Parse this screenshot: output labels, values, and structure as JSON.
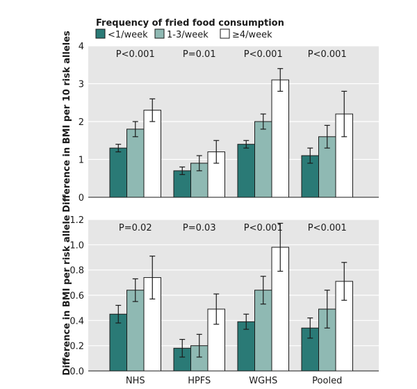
{
  "legend": {
    "title": "Frequency of fried food consumption",
    "items": [
      "<1/week",
      "1-3/week",
      "≥4/week"
    ]
  },
  "colors": {
    "low": "#2a7a76",
    "mid": "#8fb9b3",
    "high": "#ffffff",
    "panel": "#e6e6e6",
    "stroke": "#1a1a1a"
  },
  "chart_data": [
    {
      "type": "bar",
      "ylabel": "Difference in BMI per 10 risk alleles",
      "ylim": [
        0,
        4
      ],
      "yticks": [
        0,
        1,
        2,
        3,
        4
      ],
      "categories": [
        "NHS",
        "HPFS",
        "WGHS",
        "Pooled"
      ],
      "pvalues": [
        "P<0.001",
        "P=0.01",
        "P<0.001",
        "P<0.001"
      ],
      "series": [
        {
          "name": "<1/week",
          "values": [
            1.3,
            0.7,
            1.4,
            1.1
          ],
          "lower": [
            1.2,
            0.6,
            1.3,
            0.9
          ],
          "upper": [
            1.4,
            0.8,
            1.5,
            1.3
          ]
        },
        {
          "name": "1-3/week",
          "values": [
            1.8,
            0.9,
            2.0,
            1.6
          ],
          "lower": [
            1.6,
            0.7,
            1.8,
            1.3
          ],
          "upper": [
            2.0,
            1.1,
            2.2,
            1.9
          ]
        },
        {
          "name": "≥4/week",
          "values": [
            2.3,
            1.2,
            3.1,
            2.2
          ],
          "lower": [
            2.0,
            0.9,
            2.8,
            1.6
          ],
          "upper": [
            2.6,
            1.5,
            3.4,
            2.8
          ]
        }
      ]
    },
    {
      "type": "bar",
      "ylabel": "Difference in BMI per risk allele",
      "ylim": [
        0,
        1.2
      ],
      "yticks": [
        0,
        0.2,
        0.4,
        0.6,
        0.8,
        1.0,
        1.2
      ],
      "categories": [
        "NHS",
        "HPFS",
        "WGHS",
        "Pooled"
      ],
      "pvalues": [
        "P=0.02",
        "P=0.03",
        "P<0.001",
        "P<0.001"
      ],
      "series": [
        {
          "name": "<1/week",
          "values": [
            0.45,
            0.18,
            0.39,
            0.34
          ],
          "lower": [
            0.38,
            0.11,
            0.33,
            0.26
          ],
          "upper": [
            0.52,
            0.25,
            0.45,
            0.42
          ]
        },
        {
          "name": "1-3/week",
          "values": [
            0.64,
            0.2,
            0.64,
            0.49
          ],
          "lower": [
            0.55,
            0.11,
            0.53,
            0.34
          ],
          "upper": [
            0.73,
            0.29,
            0.75,
            0.64
          ]
        },
        {
          "name": "≥4/week",
          "values": [
            0.74,
            0.49,
            0.98,
            0.71
          ],
          "lower": [
            0.57,
            0.37,
            0.79,
            0.56
          ],
          "upper": [
            0.91,
            0.61,
            1.17,
            0.86
          ]
        }
      ]
    }
  ]
}
